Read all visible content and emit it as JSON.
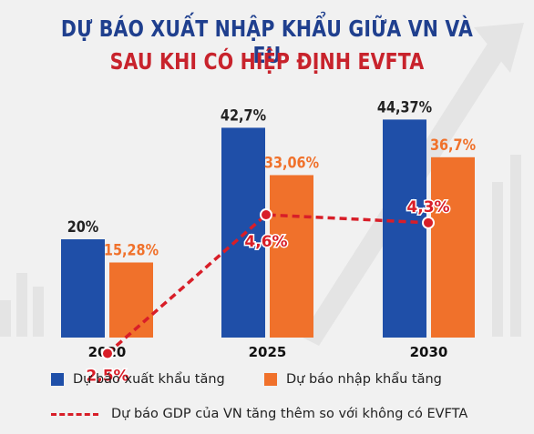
{
  "title_line1": "DỰ BÁO XUẤT NHẬP KHẨU GIỮA VN VÀ EU",
  "title_line2": "SAU KHI CÓ HIỆP ĐỊNH EVFTA",
  "colors": {
    "export": "#1f4fa8",
    "import": "#f0712b",
    "gdp": "#d81e28",
    "title1": "#1f3f8e",
    "title2": "#c8232c"
  },
  "chart_data": {
    "type": "bar",
    "categories": [
      "2020",
      "2025",
      "2030"
    ],
    "series": [
      {
        "name": "Dự báo xuất khẩu tăng",
        "values": [
          20,
          42.7,
          44.37
        ],
        "labels": [
          "20%",
          "42,7%",
          "44,37%"
        ]
      },
      {
        "name": "Dự báo nhập khẩu tăng",
        "values": [
          15.28,
          33.06,
          36.7
        ],
        "labels": [
          "15,28%",
          "33,06%",
          "36,7%"
        ]
      }
    ],
    "line_series": {
      "name": "Dự báo GDP của VN tăng thêm so với không có EVFTA",
      "values": [
        2.5,
        4.6,
        4.3
      ],
      "labels": [
        "2,5%",
        "4,6%",
        "4,3%"
      ],
      "style": "dashed"
    },
    "legend_position": "bottom",
    "grid": false
  },
  "legend": {
    "export_label": "Dự báo xuất khẩu tăng",
    "import_label": "Dự báo nhập khẩu tăng",
    "gdp_label": "Dự báo GDP của VN tăng thêm so với không có EVFTA"
  }
}
